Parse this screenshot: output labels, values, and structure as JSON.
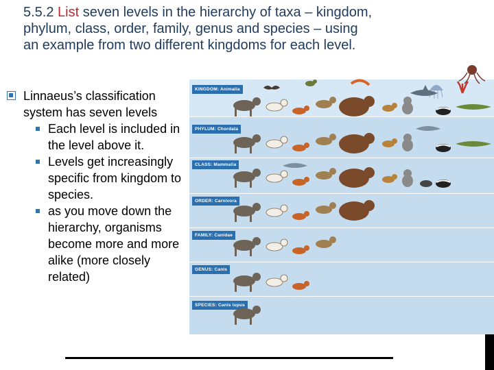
{
  "title": {
    "highlight": "List",
    "line1_prefix": "5.5.2 ",
    "line1_rest": " seven levels in the hierarchy of taxa – kingdom,",
    "line2": "phylum, class, order, family, genus and species – using",
    "line3": "an example from two different kingdoms for each level."
  },
  "bullets": {
    "main": "Linnaeus’s classification system has seven levels",
    "sub": [
      "Each level is included in the level above it.",
      "Levels get increasingly specific from kingdom to species.",
      "as you move down the hierarchy, organisms become more and more alike (more closely related)"
    ]
  },
  "figure": {
    "levels": [
      "KINGDOM: Animalia",
      "PHYLUM: Chordata",
      "CLASS: Mammalia",
      "ORDER: Carnivora",
      "FAMILY: Canidae",
      "GENUS: Canis",
      "SPECIES: Canis lupus"
    ]
  },
  "colors": {
    "title": "#1f3b5c",
    "highlight": "#c0282d",
    "bullet_mark": "#2e75b6",
    "figure_background": "#d6e8f5",
    "level_label": "#2b6fae"
  }
}
